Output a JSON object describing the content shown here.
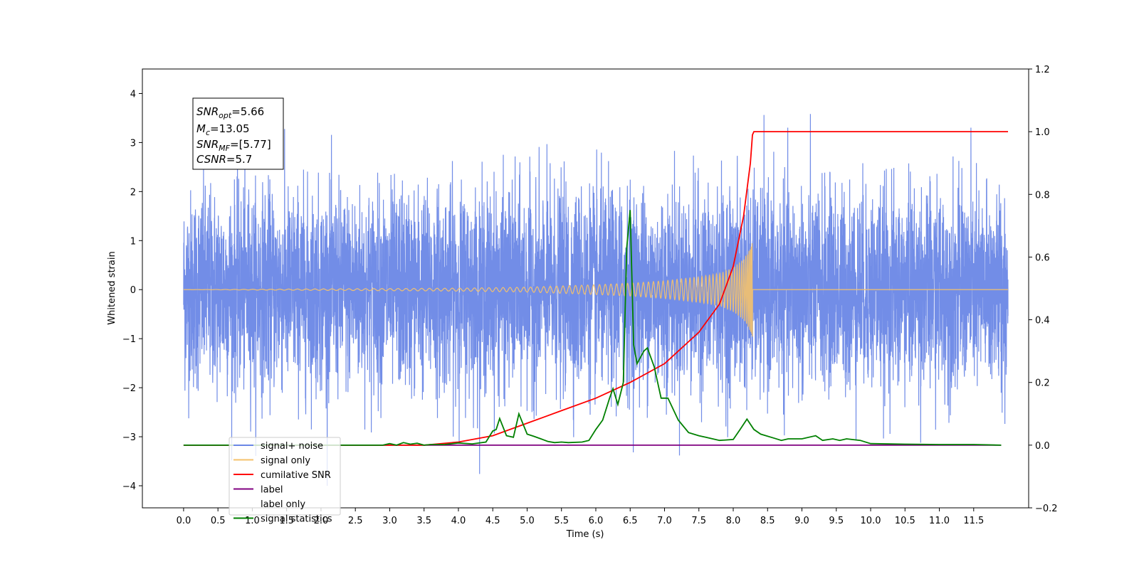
{
  "chart_data": {
    "type": "line",
    "xlabel": "Time (s)",
    "ylabel": "Whitened strain",
    "xlim": [
      -0.6,
      12.3
    ],
    "ylim": [
      -4.45,
      4.5
    ],
    "y2lim": [
      -0.2,
      1.2
    ],
    "x_ticks": [
      "0.0",
      "0.5",
      "1.0",
      "1.5",
      "2.0",
      "2.5",
      "3.0",
      "3.5",
      "4.0",
      "4.5",
      "5.0",
      "5.5",
      "6.0",
      "6.5",
      "7.0",
      "7.5",
      "8.0",
      "8.5",
      "9.0",
      "9.5",
      "10.0",
      "10.5",
      "11.0",
      "11.5"
    ],
    "y_ticks": [
      "−4",
      "−3",
      "−2",
      "−1",
      "0",
      "1",
      "2",
      "3",
      "4"
    ],
    "y2_ticks": [
      "−0.2",
      "0.0",
      "0.2",
      "0.4",
      "0.6",
      "0.8",
      "1.0",
      "1.2"
    ],
    "annotation": {
      "snr_opt": {
        "sym": "SNR",
        "sub": "opt",
        "value": "=5.66"
      },
      "mc": {
        "sym": "M",
        "sub": "c",
        "value": "=13.05"
      },
      "snr_mf": {
        "sym": "SNR",
        "sub": "MF",
        "value": "=[5.77]"
      },
      "csnr": {
        "sym": "CSNR",
        "value": "=5.7"
      }
    },
    "legend": {
      "placement": "lower left",
      "items": [
        {
          "label": "signal+ noise",
          "color": "#6a87e6"
        },
        {
          "label": "signal only",
          "color": "#f5c26b"
        },
        {
          "label": "cumilative SNR",
          "color": "#ff0000"
        },
        {
          "label": "label",
          "color": "#800080"
        },
        {
          "label": "label only",
          "color": "#ffffff"
        },
        {
          "label": "signal statistics",
          "color": "#008000"
        }
      ]
    },
    "series": [
      {
        "name": "signal+ noise",
        "axis": "left",
        "color": "#6a87e6",
        "kind": "noise",
        "x_range": [
          0.0,
          12.0
        ],
        "approx_std": 1.0,
        "approx_peak": 4.1
      },
      {
        "name": "signal only",
        "axis": "left",
        "color": "#f5c26b",
        "kind": "chirp",
        "x_range": [
          0.0,
          12.0
        ],
        "merger_time": 8.28,
        "amplitude_envelope": [
          [
            0.0,
            0.0
          ],
          [
            4.0,
            0.03
          ],
          [
            5.0,
            0.05
          ],
          [
            6.0,
            0.1
          ],
          [
            6.5,
            0.13
          ],
          [
            7.0,
            0.18
          ],
          [
            7.5,
            0.26
          ],
          [
            7.8,
            0.33
          ],
          [
            8.0,
            0.45
          ],
          [
            8.15,
            0.62
          ],
          [
            8.25,
            0.85
          ],
          [
            8.28,
            0.97
          ],
          [
            8.3,
            0.0
          ],
          [
            12.0,
            0.0
          ]
        ]
      },
      {
        "name": "cumilative SNR",
        "axis": "right",
        "color": "#ff0000",
        "points": [
          [
            0.0,
            0.0
          ],
          [
            3.5,
            0.0
          ],
          [
            4.0,
            0.01
          ],
          [
            4.5,
            0.03
          ],
          [
            5.0,
            0.07
          ],
          [
            5.5,
            0.11
          ],
          [
            6.0,
            0.15
          ],
          [
            6.5,
            0.2
          ],
          [
            7.0,
            0.26
          ],
          [
            7.5,
            0.36
          ],
          [
            7.8,
            0.45
          ],
          [
            8.0,
            0.57
          ],
          [
            8.15,
            0.73
          ],
          [
            8.25,
            0.9
          ],
          [
            8.28,
            0.99
          ],
          [
            8.3,
            1.0
          ],
          [
            12.0,
            1.0
          ]
        ]
      },
      {
        "name": "label",
        "axis": "right",
        "color": "#800080",
        "points": [
          [
            0.0,
            0.0
          ],
          [
            11.9,
            0.0
          ]
        ]
      },
      {
        "name": "signal statistics",
        "axis": "right",
        "color": "#008000",
        "points": [
          [
            0.0,
            0.0
          ],
          [
            2.9,
            0.0
          ],
          [
            3.0,
            0.005
          ],
          [
            3.1,
            0.0
          ],
          [
            3.2,
            0.008
          ],
          [
            3.3,
            0.003
          ],
          [
            3.4,
            0.006
          ],
          [
            3.5,
            0.0
          ],
          [
            3.6,
            0.002
          ],
          [
            3.8,
            0.002
          ],
          [
            4.0,
            0.007
          ],
          [
            4.2,
            0.004
          ],
          [
            4.4,
            0.01
          ],
          [
            4.5,
            0.045
          ],
          [
            4.55,
            0.05
          ],
          [
            4.6,
            0.085
          ],
          [
            4.7,
            0.03
          ],
          [
            4.8,
            0.025
          ],
          [
            4.88,
            0.1
          ],
          [
            5.0,
            0.035
          ],
          [
            5.1,
            0.028
          ],
          [
            5.2,
            0.02
          ],
          [
            5.3,
            0.012
          ],
          [
            5.4,
            0.008
          ],
          [
            5.5,
            0.01
          ],
          [
            5.6,
            0.008
          ],
          [
            5.8,
            0.01
          ],
          [
            5.9,
            0.015
          ],
          [
            6.0,
            0.05
          ],
          [
            6.1,
            0.08
          ],
          [
            6.2,
            0.15
          ],
          [
            6.25,
            0.18
          ],
          [
            6.32,
            0.13
          ],
          [
            6.4,
            0.2
          ],
          [
            6.45,
            0.63
          ],
          [
            6.5,
            0.75
          ],
          [
            6.55,
            0.32
          ],
          [
            6.6,
            0.26
          ],
          [
            6.7,
            0.3
          ],
          [
            6.75,
            0.31
          ],
          [
            6.85,
            0.25
          ],
          [
            6.95,
            0.15
          ],
          [
            7.05,
            0.15
          ],
          [
            7.2,
            0.08
          ],
          [
            7.35,
            0.04
          ],
          [
            7.5,
            0.03
          ],
          [
            7.6,
            0.025
          ],
          [
            7.8,
            0.015
          ],
          [
            8.0,
            0.018
          ],
          [
            8.1,
            0.05
          ],
          [
            8.2,
            0.083
          ],
          [
            8.3,
            0.05
          ],
          [
            8.4,
            0.035
          ],
          [
            8.6,
            0.022
          ],
          [
            8.7,
            0.015
          ],
          [
            8.8,
            0.02
          ],
          [
            9.0,
            0.02
          ],
          [
            9.2,
            0.03
          ],
          [
            9.3,
            0.015
          ],
          [
            9.45,
            0.02
          ],
          [
            9.55,
            0.015
          ],
          [
            9.65,
            0.02
          ],
          [
            9.85,
            0.015
          ],
          [
            10.0,
            0.005
          ],
          [
            10.5,
            0.003
          ],
          [
            11.0,
            0.002
          ],
          [
            11.5,
            0.002
          ],
          [
            11.9,
            0.0
          ]
        ]
      }
    ]
  }
}
